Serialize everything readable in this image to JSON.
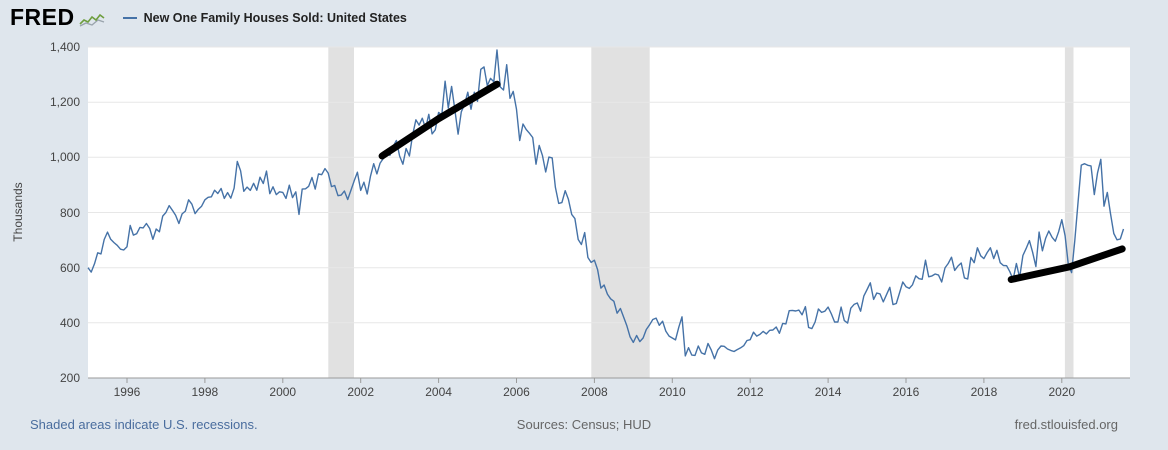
{
  "header": {
    "logo": "FRED",
    "legend_label": "New One Family Houses Sold: United States"
  },
  "icons": {
    "logo_icon": "sparkline-icon"
  },
  "footer": {
    "recession_note": "Shaded areas indicate U.S. recessions.",
    "sources": "Sources: Census; HUD",
    "site": "fred.stlouisfed.org"
  },
  "chart_data": {
    "type": "line",
    "title": "New One Family Houses Sold: United States",
    "xlabel": "",
    "ylabel": "Thousands",
    "xlim": [
      1995.0,
      2021.75
    ],
    "ylim": [
      200,
      1400
    ],
    "yticks": [
      200,
      400,
      600,
      800,
      1000,
      1200,
      1400
    ],
    "ytick_labels": [
      "200",
      "400",
      "600",
      "800",
      "1,000",
      "1,200",
      "1,400"
    ],
    "xticks": [
      1996,
      1998,
      2000,
      2002,
      2004,
      2006,
      2008,
      2010,
      2012,
      2014,
      2016,
      2018,
      2020
    ],
    "grid": "horizontal",
    "legend_position": "top-left",
    "line_color": "#4572a7",
    "colors": {
      "background": "#dfe6ed",
      "plot_background": "#ffffff",
      "recession": "#e1e1e1",
      "grid": "#e7e7e7",
      "axis": "#9a9a9a",
      "annotation": "#000000",
      "link": "#4a6d9e"
    },
    "recession_bands": [
      [
        2001.17,
        2001.83
      ],
      [
        2007.92,
        2009.42
      ],
      [
        2020.08,
        2020.3
      ]
    ],
    "series": [
      {
        "name": "New One Family Houses Sold: United States",
        "units": "Thousands",
        "frequency": "monthly",
        "start_year": 1995,
        "start_month": 1,
        "values": [
          600,
          584,
          614,
          654,
          650,
          702,
          729,
          703,
          691,
          681,
          667,
          664,
          676,
          753,
          718,
          723,
          746,
          744,
          760,
          742,
          703,
          740,
          730,
          787,
          800,
          825,
          808,
          790,
          760,
          795,
          805,
          846,
          830,
          796,
          812,
          823,
          846,
          855,
          857,
          881,
          869,
          887,
          851,
          872,
          852,
          888,
          985,
          951,
          877,
          892,
          880,
          906,
          881,
          928,
          905,
          950,
          868,
          893,
          865,
          875,
          873,
          851,
          899,
          854,
          875,
          793,
          885,
          886,
          895,
          927,
          885,
          940,
          937,
          959,
          943,
          894,
          898,
          861,
          863,
          878,
          847,
          880,
          915,
          946,
          880,
          910,
          867,
          930,
          977,
          940,
          979,
          996,
          1021,
          1007,
          1040,
          1061,
          1005,
          975,
          1032,
          1005,
          1081,
          1136,
          1117,
          1142,
          1105,
          1156,
          1085,
          1100,
          1163,
          1154,
          1276,
          1179,
          1257,
          1174,
          1084,
          1165,
          1191,
          1236,
          1174,
          1236,
          1203,
          1319,
          1328,
          1260,
          1286,
          1274,
          1389,
          1255,
          1244,
          1336,
          1214,
          1239,
          1174,
          1061,
          1121,
          1101,
          1087,
          1072,
          975,
          1043,
          1006,
          947,
          1001,
          998,
          891,
          833,
          836,
          879,
          848,
          793,
          778,
          702,
          684,
          727,
          637,
          619,
          627,
          593,
          526,
          537,
          504,
          487,
          478,
          435,
          452,
          421,
          389,
          349,
          329,
          354,
          332,
          345,
          376,
          393,
          412,
          417,
          391,
          406,
          370,
          352,
          345,
          338,
          384,
          422,
          280,
          310,
          283,
          282,
          316,
          291,
          286,
          325,
          301,
          270,
          301,
          316,
          315,
          305,
          300,
          296,
          303,
          309,
          317,
          336,
          339,
          366,
          352,
          358,
          369,
          360,
          373,
          374,
          385,
          362,
          398,
          396,
          444,
          445,
          443,
          446,
          429,
          459,
          383,
          379,
          403,
          450,
          438,
          442,
          457,
          432,
          403,
          403,
          457,
          408,
          399,
          453,
          467,
          472,
          442,
          497,
          521,
          545,
          485,
          508,
          505,
          476,
          502,
          529,
          466,
          470,
          508,
          548,
          531,
          525,
          538,
          570,
          560,
          558,
          627,
          567,
          570,
          577,
          573,
          548,
          599,
          615,
          638,
          590,
          606,
          617,
          563,
          559,
          637,
          618,
          672,
          643,
          633,
          655,
          672,
          633,
          663,
          618,
          608,
          607,
          585,
          557,
          615,
          564,
          644,
          669,
          698,
          656,
          604,
          729,
          661,
          706,
          733,
          710,
          696,
          730,
          774,
          716,
          612,
          582,
          698,
          839,
          972,
          977,
          971,
          969,
          865,
          943,
          993,
          823,
          873,
          796,
          724,
          701,
          704,
          740
        ]
      }
    ],
    "annotations": [
      {
        "type": "trend-line",
        "color": "#000000",
        "width": 7,
        "points": [
          [
            2002.55,
            1005
          ],
          [
            2004.0,
            1140
          ],
          [
            2005.5,
            1265
          ]
        ]
      },
      {
        "type": "trend-line",
        "color": "#000000",
        "width": 7,
        "points": [
          [
            2018.7,
            557
          ],
          [
            2020.2,
            603
          ],
          [
            2021.55,
            668
          ]
        ]
      }
    ]
  }
}
